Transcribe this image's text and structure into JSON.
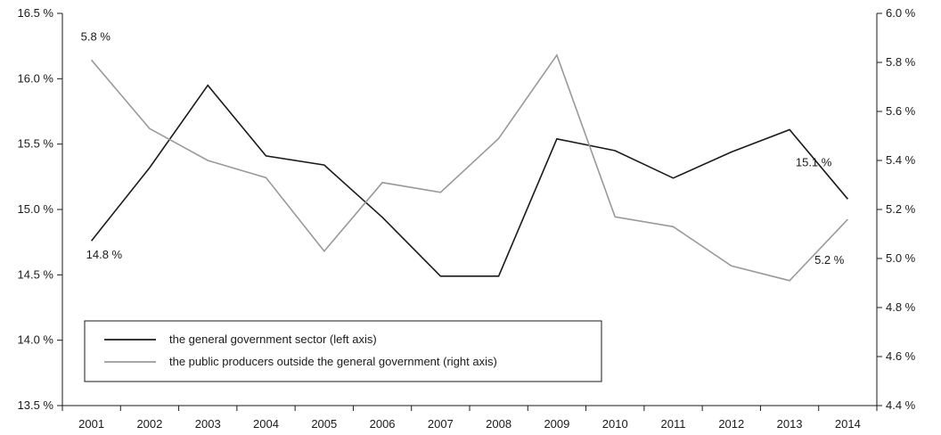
{
  "chart_data": {
    "type": "line",
    "x": [
      "2001",
      "2002",
      "2003",
      "2004",
      "2005",
      "2006",
      "2007",
      "2008",
      "2009",
      "2010",
      "2011",
      "2012",
      "2013",
      "2014"
    ],
    "left_axis": {
      "ylim": [
        13.5,
        16.5
      ],
      "ticks": [
        13.5,
        14.0,
        14.5,
        15.0,
        15.5,
        16.0,
        16.5
      ],
      "tick_labels": [
        "13.5 %",
        "14.0 %",
        "14.5 %",
        "15.0 %",
        "15.5 %",
        "16.0 %",
        "16.5 %"
      ]
    },
    "right_axis": {
      "ylim": [
        4.4,
        6.0
      ],
      "ticks": [
        4.4,
        4.6,
        4.8,
        5.0,
        5.2,
        5.4,
        5.6,
        5.8,
        6.0
      ],
      "tick_labels": [
        "4.4 %",
        "4.6 %",
        "4.8 %",
        "5.0 %",
        "5.2 %",
        "5.4 %",
        "5.6 %",
        "5.8 %",
        "6.0 %"
      ]
    },
    "series": [
      {
        "name": "the general government sector (left axis)",
        "axis": "left",
        "color": "#1a1a1a",
        "values": [
          14.76,
          15.32,
          15.95,
          15.41,
          15.34,
          14.94,
          14.49,
          14.49,
          15.54,
          15.45,
          15.24,
          15.44,
          15.61,
          15.08
        ]
      },
      {
        "name": "the public producers outside the general government (right axis)",
        "axis": "right",
        "color": "#999999",
        "values": [
          5.81,
          5.53,
          5.4,
          5.33,
          5.03,
          5.31,
          5.27,
          5.49,
          5.83,
          5.17,
          5.13,
          4.97,
          4.91,
          5.16
        ]
      }
    ],
    "annotations": [
      {
        "text": "5.8 %",
        "series": 1,
        "index": 0
      },
      {
        "text": "14.8 %",
        "series": 0,
        "index": 0
      },
      {
        "text": "15.1 %",
        "series": 0,
        "index": 13
      },
      {
        "text": "5.2 %",
        "series": 1,
        "index": 13
      }
    ],
    "legend": {
      "placement": "bottom-left",
      "entries": [
        "the general government sector (left axis)",
        "the public producers outside the general government (right axis)"
      ]
    },
    "grid": false
  }
}
